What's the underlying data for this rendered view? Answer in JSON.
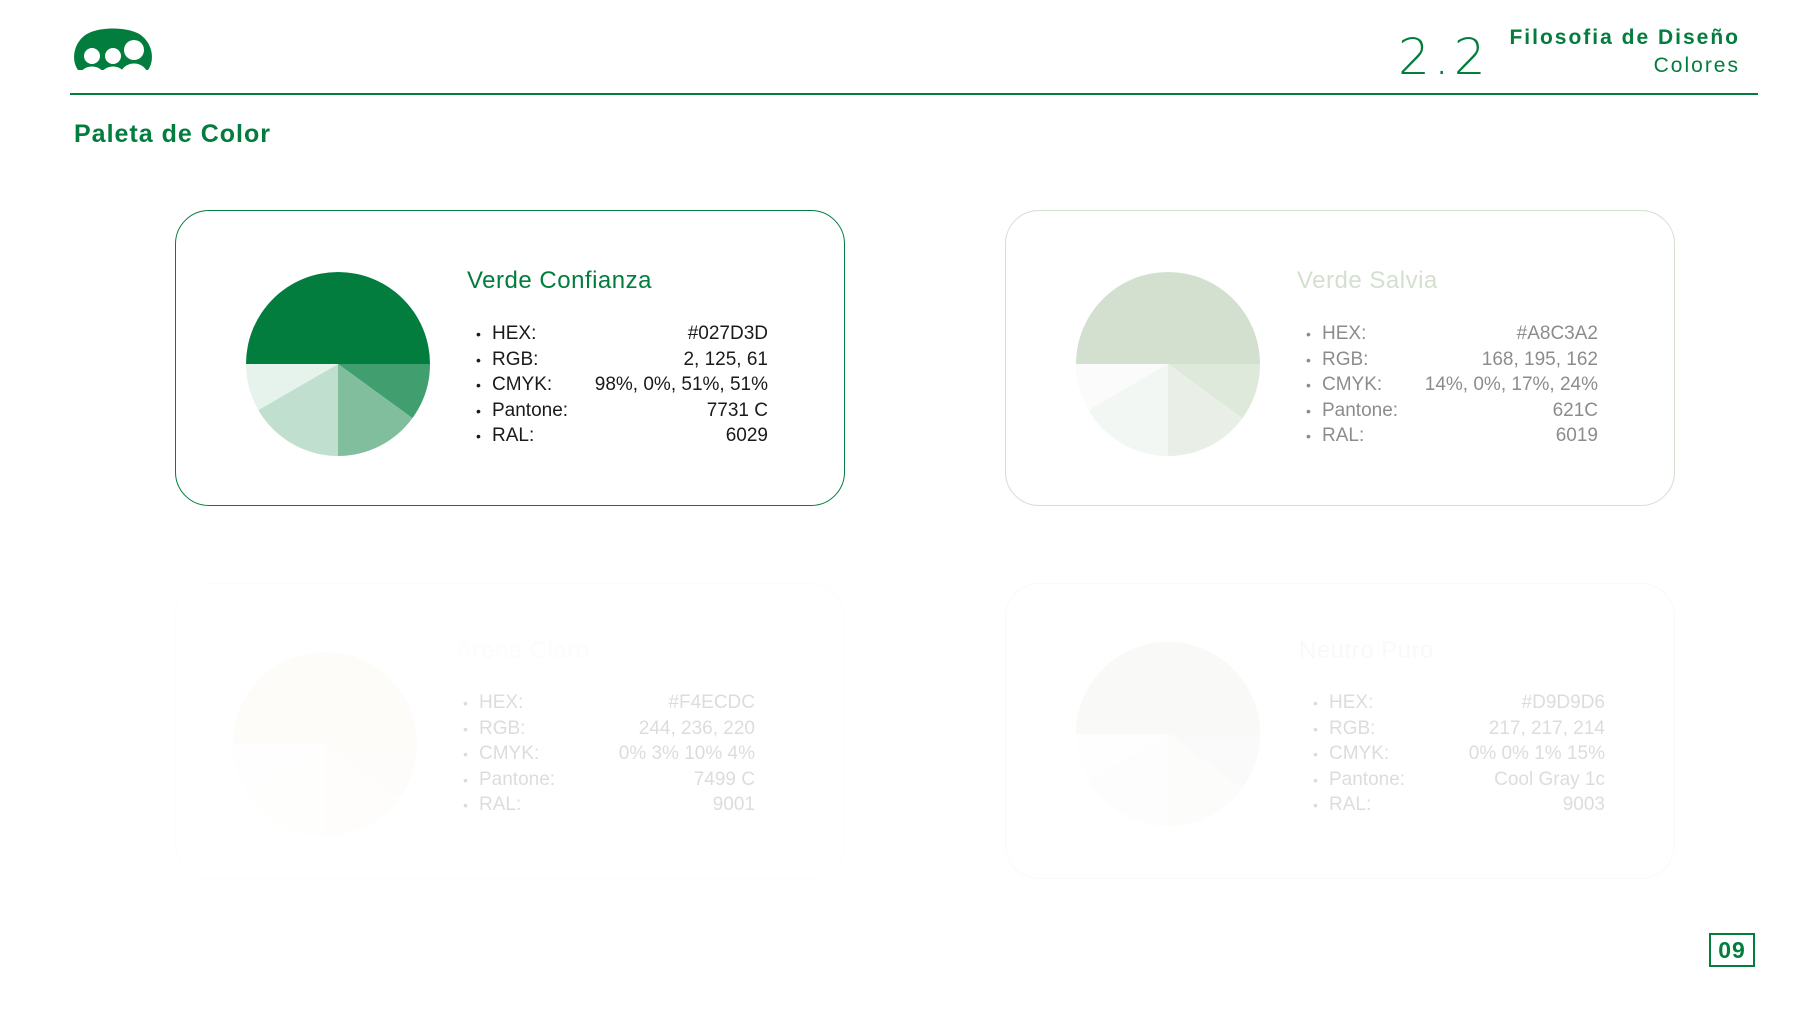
{
  "header": {
    "section_number": "2.2",
    "title": "Filosofia de Diseño",
    "subtitle": "Colores"
  },
  "page_title": "Paleta de Color",
  "page_number": "09",
  "colors": {
    "brand": "#027D3D"
  },
  "swatches": [
    {
      "name": "Verde Confianza",
      "color": "#027D3D",
      "specs": [
        {
          "key": "HEX:",
          "value": "#027D3D"
        },
        {
          "key": "RGB:",
          "value": "2, 125, 61"
        },
        {
          "key": "CMYK:",
          "value": "98%, 0%, 51%, 51%"
        },
        {
          "key": "Pantone:",
          "value": "7731 C"
        },
        {
          "key": "RAL:",
          "value": "6029"
        }
      ]
    },
    {
      "name": "Verde Salvia",
      "color": "#A8C3A2",
      "specs": [
        {
          "key": "HEX:",
          "value": "#A8C3A2"
        },
        {
          "key": "RGB:",
          "value": "168, 195, 162"
        },
        {
          "key": "CMYK:",
          "value": "14%, 0%, 17%, 24%"
        },
        {
          "key": "Pantone:",
          "value": "621C"
        },
        {
          "key": "RAL:",
          "value": "6019"
        }
      ]
    },
    {
      "name": "Arena Claro",
      "color": "#F4ECDC",
      "specs": [
        {
          "key": "HEX:",
          "value": "#F4ECDC"
        },
        {
          "key": "RGB:",
          "value": "244, 236, 220"
        },
        {
          "key": "CMYK:",
          "value": "0%  3%  10%  4%"
        },
        {
          "key": "Pantone:",
          "value": "7499 C"
        },
        {
          "key": "RAL:",
          "value": "9001"
        }
      ]
    },
    {
      "name": "Neutro Puro",
      "color": "#D9D9D6",
      "specs": [
        {
          "key": "HEX:",
          "value": "#D9D9D6"
        },
        {
          "key": "RGB:",
          "value": "217, 217, 214"
        },
        {
          "key": "CMYK:",
          "value": "0% 0% 1% 15%"
        },
        {
          "key": "Pantone:",
          "value": "Cool Gray 1c"
        },
        {
          "key": "RAL:",
          "value": "9003"
        }
      ]
    }
  ]
}
